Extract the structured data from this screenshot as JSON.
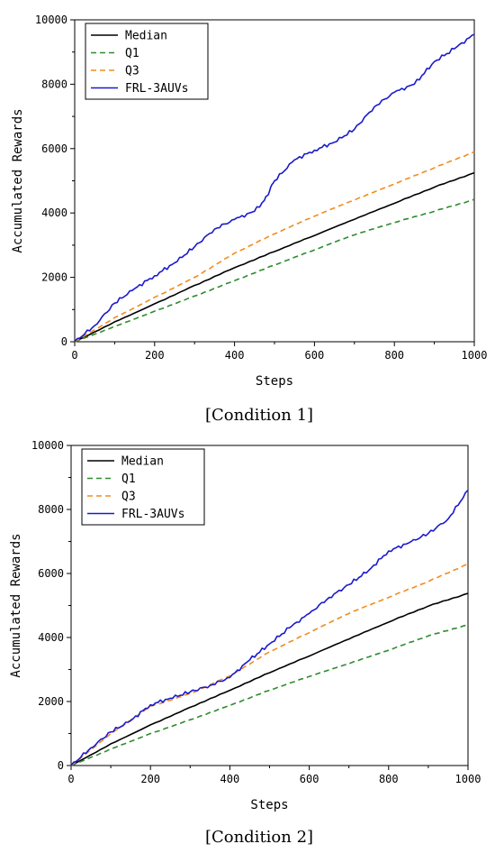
{
  "chart_data": [
    {
      "type": "line",
      "caption": "[Condition 1]",
      "xlabel": "Steps",
      "ylabel": "Accumulated Rewards",
      "xlim": [
        0,
        1000
      ],
      "ylim": [
        0,
        10000
      ],
      "xticks": [
        "0",
        "200",
        "400",
        "600",
        "800",
        "1000"
      ],
      "yticks": [
        "0",
        "2000",
        "4000",
        "6000",
        "8000",
        "10000"
      ],
      "legend_position": "top-left",
      "grid": false,
      "series": [
        {
          "name": "Median",
          "color": "#000000",
          "dash": "solid",
          "x": [
            0,
            100,
            200,
            300,
            400,
            500,
            600,
            700,
            800,
            900,
            1000
          ],
          "y": [
            0,
            620,
            1180,
            1750,
            2300,
            2800,
            3300,
            3800,
            4300,
            4800,
            5250
          ]
        },
        {
          "name": "Q1",
          "color": "#2e8b2e",
          "dash": "dashed",
          "x": [
            0,
            100,
            200,
            300,
            400,
            500,
            600,
            700,
            800,
            900,
            1000
          ],
          "y": [
            0,
            480,
            950,
            1420,
            1900,
            2380,
            2850,
            3320,
            3700,
            4050,
            4420
          ]
        },
        {
          "name": "Q3",
          "color": "#f08c20",
          "dash": "dashed",
          "x": [
            0,
            100,
            200,
            300,
            400,
            500,
            600,
            700,
            800,
            900,
            1000
          ],
          "y": [
            0,
            750,
            1380,
            2000,
            2750,
            3350,
            3900,
            4400,
            4900,
            5400,
            5900
          ]
        },
        {
          "name": "FRL-3AUVs",
          "color": "#1a1acc",
          "dash": "solid",
          "x": [
            0,
            50,
            100,
            150,
            200,
            250,
            300,
            350,
            400,
            450,
            475,
            500,
            550,
            600,
            650,
            700,
            750,
            800,
            850,
            900,
            950,
            1000
          ],
          "y": [
            0,
            500,
            1200,
            1650,
            2050,
            2450,
            2950,
            3500,
            3800,
            4050,
            4400,
            5000,
            5650,
            5950,
            6200,
            6600,
            7300,
            7750,
            8000,
            8700,
            9100,
            9550
          ]
        }
      ]
    },
    {
      "type": "line",
      "caption": "[Condition 2]",
      "xlabel": "Steps",
      "ylabel": "Accumulated Rewards",
      "xlim": [
        0,
        1000
      ],
      "ylim": [
        0,
        10000
      ],
      "xticks": [
        "0",
        "200",
        "400",
        "600",
        "800",
        "1000"
      ],
      "yticks": [
        "0",
        "2000",
        "4000",
        "6000",
        "8000",
        "10000"
      ],
      "legend_position": "top-left",
      "grid": false,
      "series": [
        {
          "name": "Median",
          "color": "#000000",
          "dash": "solid",
          "x": [
            0,
            100,
            200,
            300,
            400,
            500,
            600,
            700,
            800,
            900,
            1000
          ],
          "y": [
            0,
            680,
            1270,
            1820,
            2350,
            2900,
            3420,
            3950,
            4480,
            4980,
            5380
          ]
        },
        {
          "name": "Q1",
          "color": "#2e8b2e",
          "dash": "dashed",
          "x": [
            0,
            100,
            200,
            300,
            400,
            500,
            600,
            700,
            800,
            900,
            1000
          ],
          "y": [
            0,
            520,
            1000,
            1430,
            1880,
            2350,
            2780,
            3180,
            3600,
            4050,
            4400
          ]
        },
        {
          "name": "Q3",
          "color": "#f08c20",
          "dash": "dashed",
          "x": [
            0,
            100,
            200,
            300,
            400,
            500,
            600,
            700,
            800,
            900,
            1000
          ],
          "y": [
            0,
            1000,
            1850,
            2250,
            2800,
            3550,
            4150,
            4750,
            5250,
            5750,
            6300
          ]
        },
        {
          "name": "FRL-3AUVs",
          "color": "#1a1acc",
          "dash": "solid",
          "x": [
            0,
            50,
            100,
            150,
            200,
            250,
            300,
            350,
            400,
            450,
            500,
            550,
            600,
            650,
            700,
            750,
            800,
            850,
            900,
            950,
            1000
          ],
          "y": [
            0,
            550,
            1050,
            1400,
            1900,
            2100,
            2300,
            2500,
            2750,
            3300,
            3800,
            4300,
            4750,
            5250,
            5650,
            6100,
            6700,
            6950,
            7250,
            7700,
            8600
          ]
        }
      ]
    }
  ]
}
